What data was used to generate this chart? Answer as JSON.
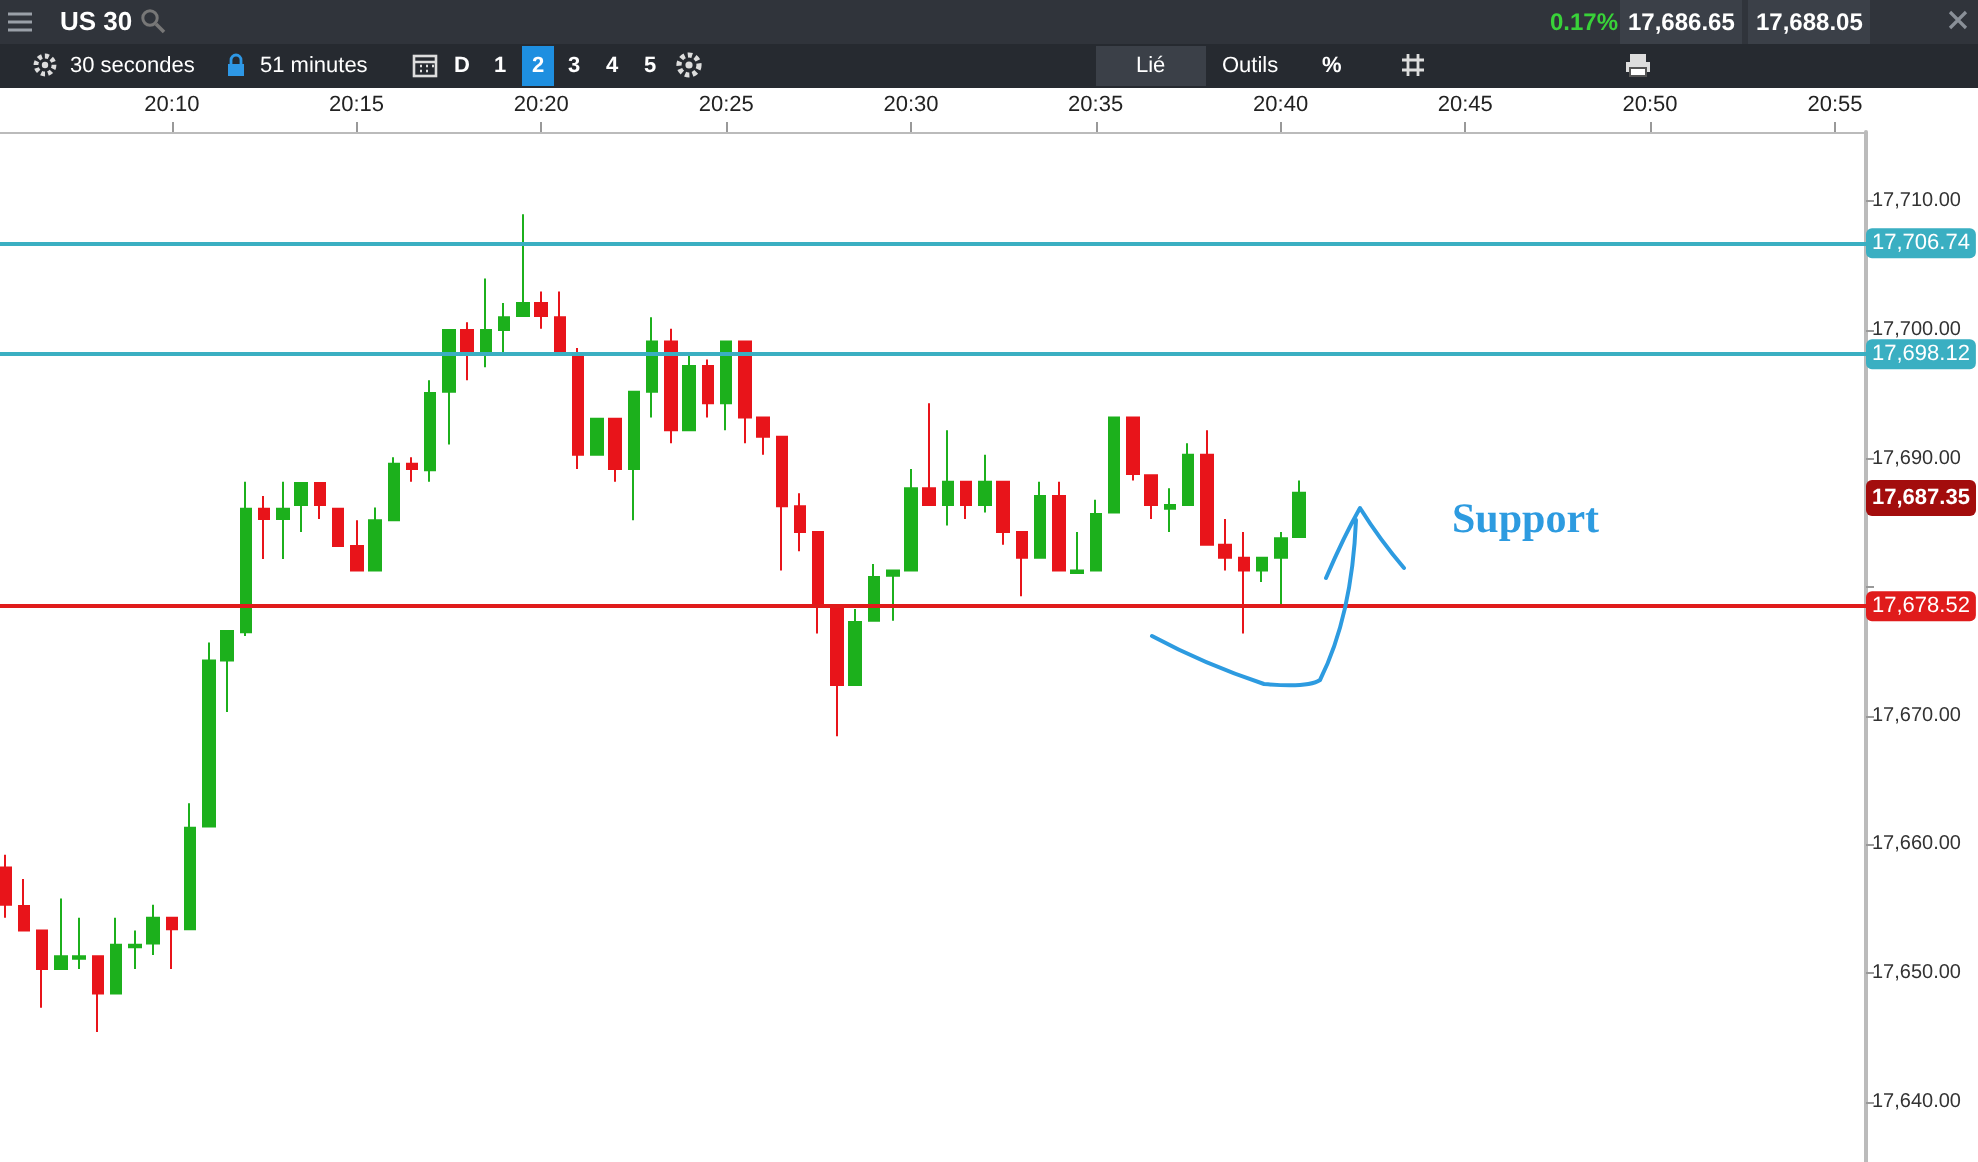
{
  "chart_data": {
    "type": "candlestick",
    "title": "US 30",
    "x": [
      20.0917,
      20.1,
      20.1083,
      20.1167,
      20.125,
      20.1333,
      20.1417,
      20.15,
      20.1583,
      20.1667,
      20.175,
      20.1833,
      20.1917,
      20.2,
      20.2083,
      20.2167,
      20.225,
      20.2333,
      20.2417,
      20.25,
      20.2583,
      20.2667,
      20.275,
      20.2833,
      20.2917,
      20.3,
      20.3083,
      20.3167,
      20.325,
      20.3333,
      20.3417,
      20.35,
      20.3583,
      20.3667,
      20.375,
      20.3833,
      20.3917,
      20.4,
      20.4083,
      20.4167,
      20.425,
      20.4333,
      20.4417,
      20.45,
      20.4583,
      20.4667,
      20.475,
      20.4833,
      20.4917,
      20.5,
      20.5083,
      20.5167,
      20.525,
      20.5333,
      20.5417,
      20.55,
      20.5583,
      20.5667,
      20.575,
      20.5833,
      20.5917,
      20.6,
      20.6083,
      20.6167,
      20.625,
      20.6333,
      20.6417,
      20.65,
      20.6583,
      20.6667,
      20.675
    ],
    "ohlc": [
      [
        17658.2,
        17659.2,
        17654.3,
        17655.3
      ],
      [
        17655.2,
        17657.3,
        17653.3,
        17653.3
      ],
      [
        17653.3,
        17653.3,
        17647.3,
        17650.3
      ],
      [
        17650.3,
        17655.8,
        17650.3,
        17651.3
      ],
      [
        17651.1,
        17654.3,
        17650.3,
        17651.3
      ],
      [
        17651.3,
        17651.3,
        17645.4,
        17648.4
      ],
      [
        17648.4,
        17654.3,
        17648.4,
        17652.2
      ],
      [
        17652.0,
        17653.3,
        17650.3,
        17652.2
      ],
      [
        17652.3,
        17655.3,
        17651.4,
        17654.3
      ],
      [
        17654.3,
        17654.3,
        17650.3,
        17653.4
      ],
      [
        17653.4,
        17663.2,
        17653.4,
        17661.3
      ],
      [
        17661.4,
        17675.7,
        17661.4,
        17674.3
      ],
      [
        17674.3,
        17676.6,
        17670.3,
        17676.6
      ],
      [
        17676.5,
        17688.2,
        17676.2,
        17686.1
      ],
      [
        17686.1,
        17687.1,
        17682.2,
        17685.3
      ],
      [
        17685.3,
        17688.2,
        17682.2,
        17686.1
      ],
      [
        17686.4,
        17688.1,
        17684.3,
        17688.1
      ],
      [
        17688.1,
        17688.1,
        17685.3,
        17686.4
      ],
      [
        17686.1,
        17686.1,
        17683.2,
        17683.2
      ],
      [
        17683.2,
        17685.2,
        17681.3,
        17681.3
      ],
      [
        17681.3,
        17686.2,
        17681.3,
        17685.2
      ],
      [
        17685.2,
        17690.1,
        17685.2,
        17689.6
      ],
      [
        17689.6,
        17690.1,
        17688.2,
        17689.2
      ],
      [
        17689.1,
        17696.1,
        17688.2,
        17695.1
      ],
      [
        17695.2,
        17700.0,
        17691.1,
        17700.0
      ],
      [
        17700.0,
        17700.6,
        17696.1,
        17698.1
      ],
      [
        17698.1,
        17704.0,
        17697.1,
        17700.0
      ],
      [
        17700.0,
        17702.1,
        17698.1,
        17701.0
      ],
      [
        17701.1,
        17709.0,
        17701.1,
        17702.1
      ],
      [
        17702.1,
        17703.0,
        17700.1,
        17701.1
      ],
      [
        17701.0,
        17703.0,
        17698.1,
        17698.1
      ],
      [
        17698.1,
        17698.6,
        17689.2,
        17690.3
      ],
      [
        17690.3,
        17693.1,
        17690.3,
        17693.1
      ],
      [
        17693.1,
        17693.1,
        17688.2,
        17689.2
      ],
      [
        17689.2,
        17695.2,
        17685.2,
        17695.2
      ],
      [
        17695.2,
        17701.0,
        17693.2,
        17699.1
      ],
      [
        17699.1,
        17700.1,
        17691.2,
        17692.2
      ],
      [
        17692.2,
        17698.2,
        17692.2,
        17697.2
      ],
      [
        17697.2,
        17697.7,
        17693.2,
        17694.3
      ],
      [
        17694.3,
        17699.1,
        17692.2,
        17699.1
      ],
      [
        17699.1,
        17699.1,
        17691.2,
        17693.2
      ],
      [
        17693.2,
        17693.2,
        17690.3,
        17691.7
      ],
      [
        17691.7,
        17691.7,
        17681.3,
        17686.3
      ],
      [
        17686.3,
        17687.3,
        17682.8,
        17684.3
      ],
      [
        17684.3,
        17684.3,
        17676.4,
        17678.5
      ],
      [
        17678.5,
        17678.5,
        17668.4,
        17672.4
      ],
      [
        17672.4,
        17678.3,
        17672.4,
        17677.3
      ],
      [
        17677.4,
        17681.8,
        17677.4,
        17680.8
      ],
      [
        17680.9,
        17681.3,
        17677.4,
        17681.3
      ],
      [
        17681.3,
        17689.2,
        17681.3,
        17687.7
      ],
      [
        17687.7,
        17694.3,
        17686.4,
        17686.4
      ],
      [
        17686.4,
        17692.2,
        17684.8,
        17688.2
      ],
      [
        17688.2,
        17688.2,
        17685.3,
        17686.4
      ],
      [
        17686.4,
        17690.3,
        17685.8,
        17688.2
      ],
      [
        17688.2,
        17688.2,
        17683.3,
        17684.3
      ],
      [
        17684.3,
        17684.3,
        17679.3,
        17682.3
      ],
      [
        17682.3,
        17688.2,
        17682.3,
        17687.1
      ],
      [
        17687.1,
        17688.2,
        17681.3,
        17681.3
      ],
      [
        17681.1,
        17684.3,
        17681.1,
        17681.3
      ],
      [
        17681.3,
        17686.8,
        17681.3,
        17685.7
      ],
      [
        17685.8,
        17693.2,
        17685.8,
        17693.2
      ],
      [
        17693.2,
        17693.2,
        17688.3,
        17688.8
      ],
      [
        17688.7,
        17688.7,
        17685.3,
        17686.4
      ],
      [
        17686.1,
        17687.7,
        17684.3,
        17686.4
      ],
      [
        17686.4,
        17691.2,
        17686.4,
        17690.3
      ],
      [
        17690.3,
        17692.2,
        17683.3,
        17683.3
      ],
      [
        17683.3,
        17685.3,
        17681.3,
        17682.3
      ],
      [
        17682.3,
        17684.3,
        17676.4,
        17681.3
      ],
      [
        17681.3,
        17682.3,
        17680.4,
        17682.3
      ],
      [
        17682.3,
        17684.3,
        17678.6,
        17683.8
      ],
      [
        17683.9,
        17688.3,
        17683.9,
        17687.35
      ]
    ],
    "colors": [
      "#e8141a",
      "#e8141a",
      "#e8141a",
      "#1cb01c",
      "#1cb01c",
      "#e8141a",
      "#1cb01c",
      "#1cb01c",
      "#1cb01c",
      "#e8141a",
      "#1cb01c",
      "#1cb01c",
      "#1cb01c",
      "#1cb01c",
      "#e8141a",
      "#1cb01c",
      "#1cb01c",
      "#e8141a",
      "#e8141a",
      "#e8141a",
      "#1cb01c",
      "#1cb01c",
      "#e8141a",
      "#1cb01c",
      "#1cb01c",
      "#e8141a",
      "#1cb01c",
      "#1cb01c",
      "#1cb01c",
      "#e8141a",
      "#e8141a",
      "#e8141a",
      "#1cb01c",
      "#e8141a",
      "#1cb01c",
      "#1cb01c",
      "#e8141a",
      "#1cb01c",
      "#e8141a",
      "#1cb01c",
      "#e8141a",
      "#e8141a",
      "#e8141a",
      "#e8141a",
      "#e8141a",
      "#e8141a",
      "#1cb01c",
      "#1cb01c",
      "#1cb01c",
      "#1cb01c",
      "#e8141a",
      "#1cb01c",
      "#e8141a",
      "#1cb01c",
      "#e8141a",
      "#e8141a",
      "#1cb01c",
      "#e8141a",
      "#1cb01c",
      "#1cb01c",
      "#1cb01c",
      "#e8141a",
      "#e8141a",
      "#1cb01c",
      "#1cb01c",
      "#e8141a",
      "#e8141a",
      "#e8141a",
      "#1cb01c",
      "#1cb01c",
      "#1cb01c"
    ],
    "xlim": [
      20.0892,
      20.9307
    ],
    "xticks": [
      {
        "value": 20.1667,
        "label": "20:10"
      },
      {
        "value": 20.25,
        "label": "20:15"
      },
      {
        "value": 20.3333,
        "label": "20:20"
      },
      {
        "value": 20.4167,
        "label": "20:25"
      },
      {
        "value": 20.5,
        "label": "20:30"
      },
      {
        "value": 20.5833,
        "label": "20:35"
      },
      {
        "value": 20.6667,
        "label": "20:40"
      },
      {
        "value": 20.75,
        "label": "20:45"
      },
      {
        "value": 20.8333,
        "label": "20:50"
      },
      {
        "value": 20.9167,
        "label": "20:55"
      }
    ],
    "ylim": [
      17635.3,
      17715.4
    ],
    "yticks": [
      {
        "value": 17640,
        "label": "17,640.00"
      },
      {
        "value": 17650,
        "label": "17,650.00"
      },
      {
        "value": 17660,
        "label": "17,660.00"
      },
      {
        "value": 17670,
        "label": "17,670.00"
      },
      {
        "value": 17680,
        "label": null
      },
      {
        "value": 17690,
        "label": "17,690.00"
      },
      {
        "value": 17700,
        "label": "17,700.00"
      },
      {
        "value": 17710,
        "label": "17,710.00"
      }
    ],
    "ref_lines": [
      {
        "axis": "y",
        "value": 17706.74,
        "label": "17,706.74",
        "color": "#3aafc2"
      },
      {
        "axis": "y",
        "value": 17698.12,
        "label": "17,698.12",
        "color": "#3aafc2"
      },
      {
        "axis": "y",
        "value": 17678.52,
        "label": "17,678.52",
        "color": "#e01b1b"
      }
    ],
    "annotations": [
      "0.17%",
      "17,686.65",
      "17,688.05",
      "30 secondes",
      "51 minutes",
      "D",
      "1",
      "2",
      "3",
      "4",
      "5",
      "Lié",
      "Outils",
      "%",
      "Support",
      "17,687.35"
    ]
  }
}
